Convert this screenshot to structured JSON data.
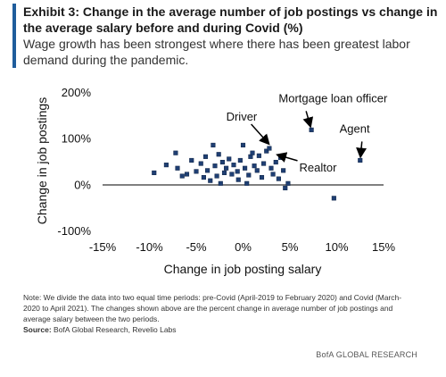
{
  "header": {
    "title": "Exhibit 3: Change in the average number of job postings vs change in the average salary before and during Covid (%)",
    "subtitle": "Wage growth has been strongest where there has been greatest labor demand during the pandemic."
  },
  "chart_data": {
    "type": "scatter",
    "xlabel": "Change in job posting salary",
    "ylabel": "Change in job postings",
    "xlim": [
      -15,
      15
    ],
    "ylim": [
      -100,
      200
    ],
    "xticks": [
      "-15%",
      "-10%",
      "-5%",
      "0%",
      "5%",
      "10%",
      "15%"
    ],
    "yticks": [
      "200%",
      "100%",
      "0%",
      "-100%"
    ],
    "grid": false,
    "marker_color": "#1f3f73",
    "points": [
      {
        "x": -9.5,
        "y": 25
      },
      {
        "x": -8.2,
        "y": 42
      },
      {
        "x": -7.2,
        "y": 68
      },
      {
        "x": -7.0,
        "y": 35
      },
      {
        "x": -6.5,
        "y": 18
      },
      {
        "x": -6.0,
        "y": 22
      },
      {
        "x": -5.5,
        "y": 52
      },
      {
        "x": -5.0,
        "y": 28
      },
      {
        "x": -4.5,
        "y": 45
      },
      {
        "x": -4.2,
        "y": 15
      },
      {
        "x": -4.0,
        "y": 60
      },
      {
        "x": -3.8,
        "y": 30
      },
      {
        "x": -3.5,
        "y": 8
      },
      {
        "x": -3.2,
        "y": 85
      },
      {
        "x": -3.0,
        "y": 40
      },
      {
        "x": -2.8,
        "y": 18
      },
      {
        "x": -2.6,
        "y": 65
      },
      {
        "x": -2.4,
        "y": 2
      },
      {
        "x": -2.2,
        "y": 48
      },
      {
        "x": -2.0,
        "y": 25
      },
      {
        "x": -1.8,
        "y": 35
      },
      {
        "x": -1.5,
        "y": 55
      },
      {
        "x": -1.2,
        "y": 22
      },
      {
        "x": -1.0,
        "y": 42
      },
      {
        "x": -0.6,
        "y": 28
      },
      {
        "x": -0.5,
        "y": 10
      },
      {
        "x": -0.3,
        "y": 52
      },
      {
        "x": 0.0,
        "y": 85
      },
      {
        "x": 0.2,
        "y": 35
      },
      {
        "x": 0.4,
        "y": 2
      },
      {
        "x": 0.6,
        "y": 20
      },
      {
        "x": 0.8,
        "y": 60
      },
      {
        "x": 1.0,
        "y": 68
      },
      {
        "x": 1.2,
        "y": 40
      },
      {
        "x": 1.5,
        "y": 30
      },
      {
        "x": 1.7,
        "y": 62
      },
      {
        "x": 2.0,
        "y": 15
      },
      {
        "x": 2.2,
        "y": 45
      },
      {
        "x": 2.5,
        "y": 72
      },
      {
        "x": 2.8,
        "y": 78
      },
      {
        "x": 3.0,
        "y": 35
      },
      {
        "x": 3.2,
        "y": 22
      },
      {
        "x": 3.5,
        "y": 48
      },
      {
        "x": 3.8,
        "y": 12
      },
      {
        "x": 4.0,
        "y": 58
      },
      {
        "x": 4.3,
        "y": 30
      },
      {
        "x": 4.5,
        "y": -8
      },
      {
        "x": 4.8,
        "y": 2
      },
      {
        "x": 7.3,
        "y": 118
      },
      {
        "x": 9.7,
        "y": -30
      },
      {
        "x": 12.5,
        "y": 52
      }
    ],
    "annotations": [
      {
        "text": "Mortgage loan officer",
        "tx": 3.8,
        "ty": 178,
        "ax": 7.3,
        "ay": 118
      },
      {
        "text": "Driver",
        "tx": -1.8,
        "ty": 138,
        "ax": 3.0,
        "ay": 82
      },
      {
        "text": "Agent",
        "tx": 10.3,
        "ty": 112,
        "ax": 12.5,
        "ay": 52
      },
      {
        "text": "Realtor",
        "tx": 6.0,
        "ty": 28,
        "ax": 3.3,
        "ay": 66
      }
    ]
  },
  "footer": {
    "note": "Note: We divide the data into two equal time periods: pre-Covid (April-2019 to February 2020) and Covid (March-2020 to April 2021). The changes shown above are the percent change in average number of job postings and average salary between the two periods.",
    "source_label": "Source:",
    "source_text": "BofA Global Research, Revelio Labs",
    "brand": "BofA GLOBAL RESEARCH"
  }
}
